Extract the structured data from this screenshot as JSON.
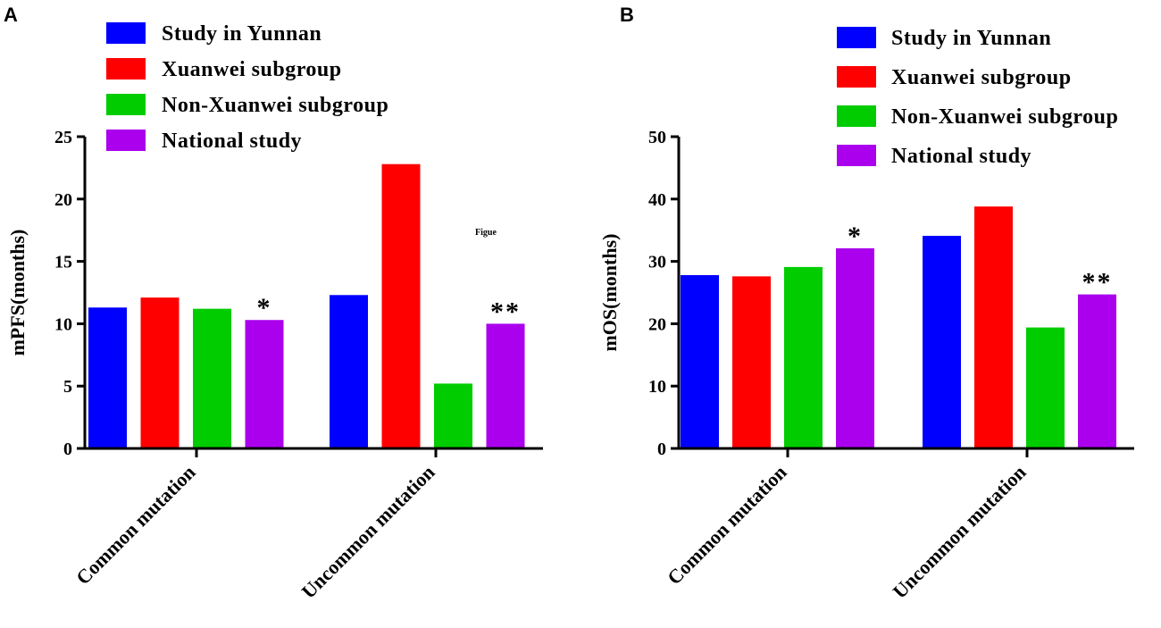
{
  "colors": {
    "study_in_yunnan": "#0000FF",
    "xuanwei_subgroup": "#FF0000",
    "non_xuanwei_subgroup": "#00CC00",
    "national_study": "#AA00EE"
  },
  "chart_data": [
    {
      "panel": "A",
      "type": "bar",
      "title": "",
      "xlabel": "",
      "ylabel": "mPFS(months)",
      "ylim": [
        0,
        25
      ],
      "yticks": [
        0,
        5,
        10,
        15,
        20,
        25
      ],
      "categories": [
        "Common mutation",
        "Uncommon mutation"
      ],
      "series": [
        {
          "name": "Study in Yunnan",
          "color_key": "study_in_yunnan",
          "values": [
            11.3,
            12.3
          ]
        },
        {
          "name": "Xuanwei subgroup",
          "color_key": "xuanwei_subgroup",
          "values": [
            12.1,
            22.8
          ]
        },
        {
          "name": "Non-Xuanwei subgroup",
          "color_key": "non_xuanwei_subgroup",
          "values": [
            11.2,
            5.2
          ]
        },
        {
          "name": "National study",
          "color_key": "national_study",
          "values": [
            10.3,
            10.0
          ]
        }
      ],
      "annotations": [
        "*",
        "**"
      ],
      "note": "Figue"
    },
    {
      "panel": "B",
      "type": "bar",
      "title": "",
      "xlabel": "",
      "ylabel": "mOS(months)",
      "ylim": [
        0,
        50
      ],
      "yticks": [
        0,
        10,
        20,
        30,
        40,
        50
      ],
      "categories": [
        "Common mutation",
        "Uncommon mutation"
      ],
      "series": [
        {
          "name": "Study in Yunnan",
          "color_key": "study_in_yunnan",
          "values": [
            27.8,
            34.1
          ]
        },
        {
          "name": "Xuanwei subgroup",
          "color_key": "xuanwei_subgroup",
          "values": [
            27.6,
            38.8
          ]
        },
        {
          "name": "Non-Xuanwei subgroup",
          "color_key": "non_xuanwei_subgroup",
          "values": [
            29.1,
            19.4
          ]
        },
        {
          "name": "National study",
          "color_key": "national_study",
          "values": [
            32.1,
            24.7
          ]
        }
      ],
      "annotations": [
        "*",
        "**"
      ],
      "note": ""
    }
  ]
}
